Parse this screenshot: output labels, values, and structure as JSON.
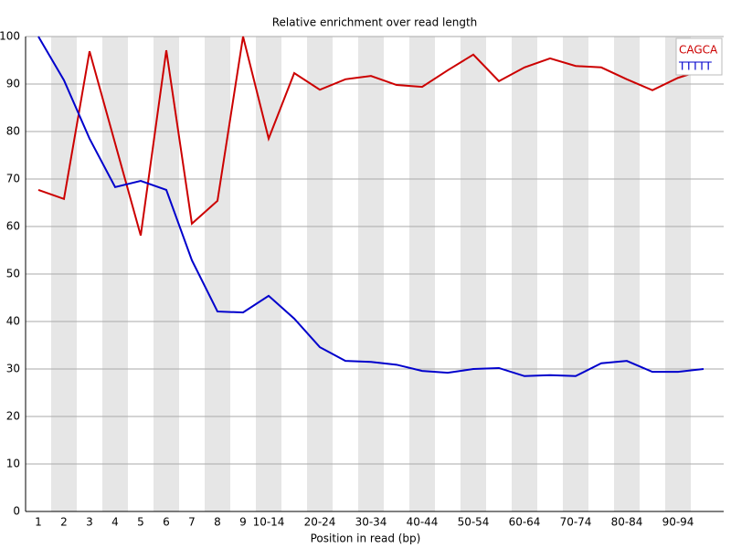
{
  "chart_data": {
    "type": "line",
    "title": "Relative enrichment over read length",
    "xlabel": "Position in read (bp)",
    "categories": [
      "1",
      "2",
      "3",
      "4",
      "5",
      "6",
      "7",
      "8",
      "9",
      "10-14",
      null,
      "20-24",
      null,
      "30-34",
      null,
      "40-44",
      null,
      "50-54",
      null,
      "60-64",
      null,
      "70-74",
      null,
      "80-84",
      null,
      "90-94",
      null
    ],
    "series": [
      {
        "name": "CAGCA",
        "color": "#cc0000",
        "values": [
          67.7,
          65.8,
          96.9,
          77.5,
          58.1,
          97.1,
          60.6,
          65.4,
          100,
          78.5,
          92.3,
          88.8,
          91,
          91.7,
          89.8,
          89.4,
          92.9,
          96.2,
          90.6,
          93.5,
          95.4,
          93.8,
          93.5,
          91,
          88.7,
          91.3,
          93
        ]
      },
      {
        "name": "TTTTT",
        "color": "#0000cc",
        "values": [
          100,
          90.8,
          78.5,
          68.3,
          69.6,
          67.7,
          52.9,
          42.1,
          41.9,
          45.4,
          40.6,
          34.6,
          31.7,
          31.5,
          30.9,
          29.6,
          29.2,
          30,
          30.2,
          28.5,
          28.7,
          28.5,
          31.2,
          31.7,
          29.4,
          29.4,
          30
        ]
      }
    ],
    "ylim": [
      0,
      100
    ],
    "yticks": [
      0,
      10,
      20,
      30,
      40,
      50,
      60,
      70,
      80,
      90,
      100
    ],
    "grid": true,
    "legend": "top-right"
  }
}
